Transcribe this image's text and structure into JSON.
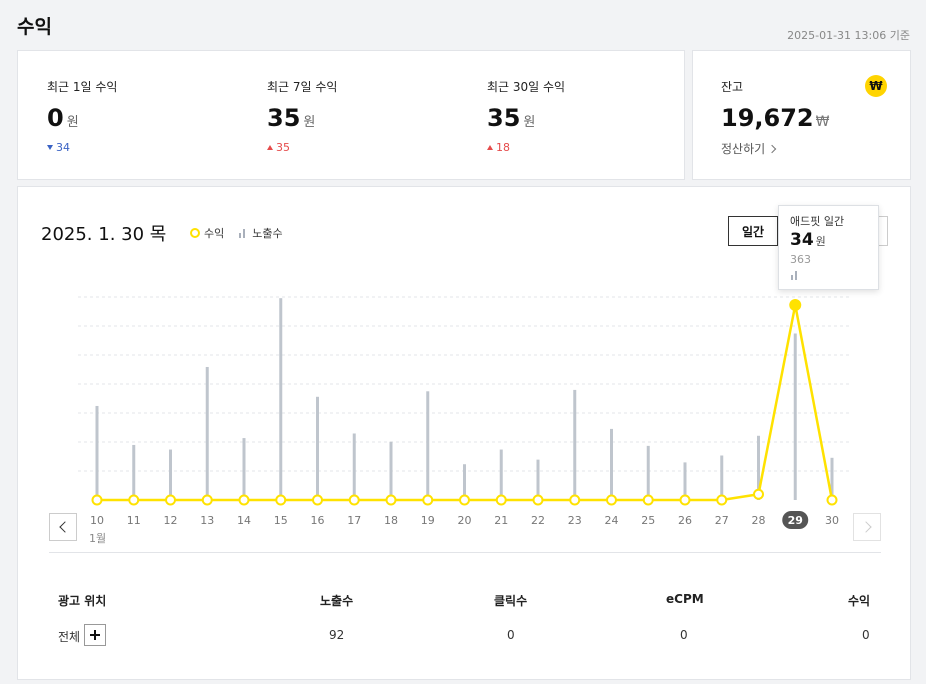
{
  "page": {
    "title": "수익",
    "timestamp": "2025-01-31 13:06 기준"
  },
  "stats": [
    {
      "label": "최근 1일 수익",
      "value": "0",
      "unit": "원",
      "delta": "34",
      "direction": "down"
    },
    {
      "label": "최근 7일 수익",
      "value": "35",
      "unit": "원",
      "delta": "35",
      "direction": "up"
    },
    {
      "label": "최근 30일 수익",
      "value": "35",
      "unit": "원",
      "delta": "18",
      "direction": "up"
    }
  ],
  "balance": {
    "label": "잔고",
    "coin_icon": "won-coin-icon",
    "coin_symbol": "₩",
    "value": "19,672",
    "unit": "₩",
    "link": "정산하기"
  },
  "chart_header": {
    "date": "2025. 1. 30 목",
    "legend_revenue": "수익",
    "legend_impressions": "노출수",
    "period_button": "일간"
  },
  "tooltip": {
    "title": "애드핏 일간",
    "value": "34",
    "unit": "원",
    "impressions": "363"
  },
  "month_label": "1월",
  "colors": {
    "revenue_line": "#ffe200",
    "impression_bar": "#bfc5cd",
    "active_day_badge": "#555555"
  },
  "chart_data": {
    "type": "bar",
    "categories": [
      "10",
      "11",
      "12",
      "13",
      "14",
      "15",
      "16",
      "17",
      "18",
      "19",
      "20",
      "21",
      "22",
      "23",
      "24",
      "25",
      "26",
      "27",
      "28",
      "29",
      "30"
    ],
    "series": [
      {
        "name": "노출수",
        "type": "bar",
        "values": [
          205,
          120,
          110,
          290,
          135,
          440,
          225,
          145,
          127,
          237,
          78,
          110,
          88,
          240,
          155,
          118,
          82,
          97,
          140,
          363,
          92
        ]
      },
      {
        "name": "수익",
        "type": "line",
        "values": [
          0,
          0,
          0,
          0,
          0,
          0,
          0,
          0,
          0,
          0,
          0,
          0,
          0,
          0,
          0,
          0,
          0,
          0,
          1,
          34,
          0
        ]
      }
    ],
    "active_category": "29",
    "grid": true
  },
  "table": {
    "headers": {
      "position": "광고 위치",
      "impressions": "노출수",
      "clicks": "클릭수",
      "ecpm": "eCPM",
      "revenue": "수익"
    },
    "rows": [
      {
        "position": "전체",
        "impressions": "92",
        "clicks": "0",
        "ecpm": "0",
        "revenue": "0"
      }
    ]
  }
}
